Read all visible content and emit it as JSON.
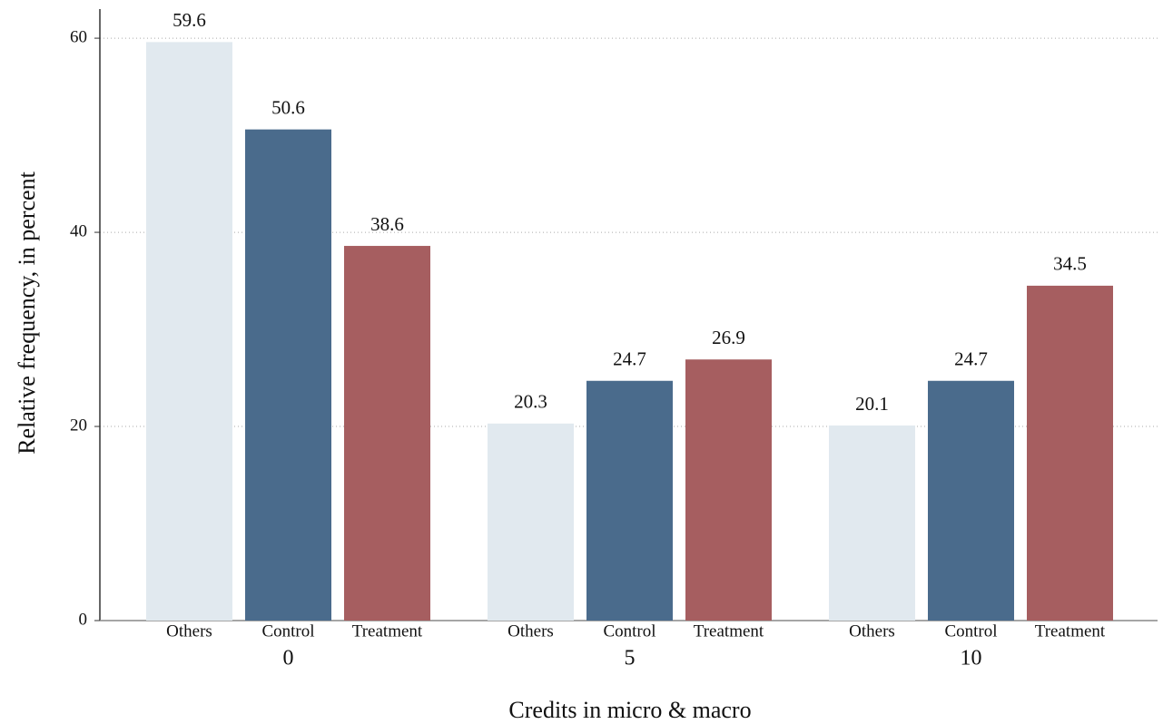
{
  "chart_data": {
    "type": "bar",
    "x_label": "Credits in micro & macro",
    "y_label": "Relative frequency, in percent",
    "categories": [
      "0",
      "5",
      "10"
    ],
    "series": [
      {
        "name": "Others",
        "color": "#e1e9ef",
        "values": [
          59.6,
          20.3,
          20.1
        ]
      },
      {
        "name": "Control",
        "color": "#4a6b8c",
        "values": [
          50.6,
          24.7,
          24.7
        ]
      },
      {
        "name": "Treatment",
        "color": "#a65e60",
        "values": [
          38.6,
          26.9,
          34.5
        ]
      }
    ],
    "ylim": [
      0,
      63
    ],
    "yticks": [
      0,
      20,
      40,
      60
    ],
    "grid": true
  }
}
